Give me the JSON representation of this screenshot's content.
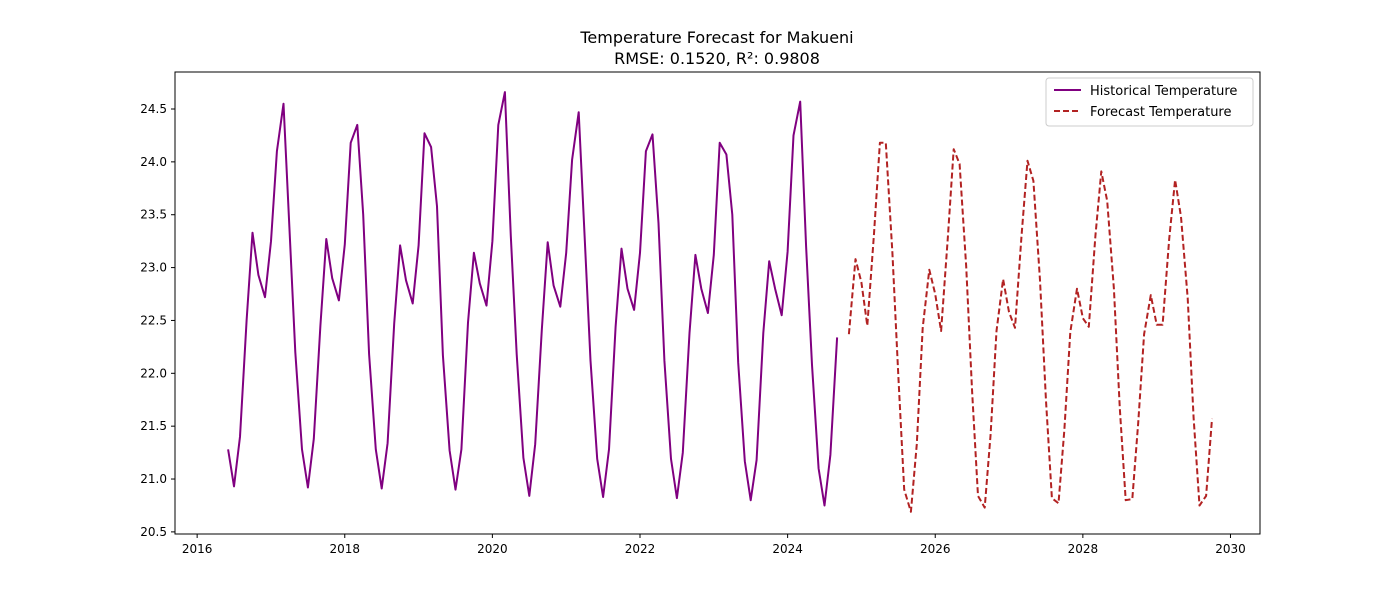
{
  "chart_data": {
    "type": "line",
    "title": "Temperature Forecast for Makueni",
    "subtitle": "RMSE: 0.1520, R²: 0.9808",
    "xlabel": "",
    "ylabel": "",
    "xlim": [
      2015.7,
      2030.4
    ],
    "ylim": [
      20.48,
      24.85
    ],
    "x_ticks": [
      2016,
      2018,
      2020,
      2022,
      2024,
      2026,
      2028,
      2030
    ],
    "y_ticks": [
      20.5,
      21.0,
      21.5,
      22.0,
      22.5,
      23.0,
      23.5,
      24.0,
      24.5
    ],
    "grid": false,
    "legend_position": "top-right",
    "series": [
      {
        "name": "Historical Temperature",
        "color": "#800080",
        "line_style": "solid",
        "x": [
          2016.42,
          2016.5,
          2016.58,
          2016.67,
          2016.75,
          2016.83,
          2016.92,
          2017.0,
          2017.08,
          2017.17,
          2017.25,
          2017.33,
          2017.42,
          2017.5,
          2017.58,
          2017.67,
          2017.75,
          2017.83,
          2017.92,
          2018.0,
          2018.08,
          2018.17,
          2018.25,
          2018.33,
          2018.42,
          2018.5,
          2018.58,
          2018.67,
          2018.75,
          2018.83,
          2018.92,
          2019.0,
          2019.08,
          2019.17,
          2019.25,
          2019.33,
          2019.42,
          2019.5,
          2019.58,
          2019.67,
          2019.75,
          2019.83,
          2019.92,
          2020.0,
          2020.08,
          2020.17,
          2020.25,
          2020.33,
          2020.42,
          2020.5,
          2020.58,
          2020.67,
          2020.75,
          2020.83,
          2020.92,
          2021.0,
          2021.08,
          2021.17,
          2021.25,
          2021.33,
          2021.42,
          2021.5,
          2021.58,
          2021.67,
          2021.75,
          2021.83,
          2021.92,
          2022.0,
          2022.08,
          2022.17,
          2022.25,
          2022.33,
          2022.42,
          2022.5,
          2022.58,
          2022.67,
          2022.75,
          2022.83,
          2022.92,
          2023.0,
          2023.08,
          2023.17,
          2023.25,
          2023.33,
          2023.42,
          2023.5,
          2023.58,
          2023.67,
          2023.75,
          2023.83,
          2023.92,
          2024.0,
          2024.08,
          2024.17,
          2024.25,
          2024.33,
          2024.42,
          2024.5,
          2024.58,
          2024.67
        ],
        "values": [
          21.28,
          20.93,
          21.4,
          22.5,
          23.33,
          22.93,
          22.72,
          23.25,
          24.1,
          24.55,
          23.38,
          22.2,
          21.28,
          20.92,
          21.38,
          22.45,
          23.27,
          22.9,
          22.69,
          23.22,
          24.18,
          24.35,
          23.5,
          22.18,
          21.28,
          20.91,
          21.34,
          22.47,
          23.21,
          22.88,
          22.66,
          23.21,
          24.27,
          24.14,
          23.58,
          22.17,
          21.27,
          20.9,
          21.28,
          22.48,
          23.14,
          22.85,
          22.64,
          23.25,
          24.35,
          24.66,
          23.3,
          22.18,
          21.2,
          20.84,
          21.33,
          22.41,
          23.24,
          22.83,
          22.63,
          23.14,
          24.02,
          24.47,
          23.3,
          22.12,
          21.19,
          20.83,
          21.28,
          22.44,
          23.18,
          22.8,
          22.6,
          23.14,
          24.1,
          24.26,
          23.42,
          22.12,
          21.19,
          20.82,
          21.25,
          22.38,
          23.12,
          22.8,
          22.57,
          23.12,
          24.18,
          24.07,
          23.5,
          22.1,
          21.17,
          20.8,
          21.18,
          22.38,
          23.06,
          22.8,
          22.55,
          23.15,
          24.25,
          24.57,
          23.2,
          22.08,
          21.1,
          20.75,
          21.23,
          22.34
        ]
      },
      {
        "name": "Forecast Temperature",
        "color": "#b22222",
        "line_style": "dashed",
        "x": [
          2024.83,
          2024.92,
          2025.0,
          2025.08,
          2025.17,
          2025.25,
          2025.33,
          2025.42,
          2025.5,
          2025.58,
          2025.67,
          2025.75,
          2025.83,
          2025.92,
          2026.0,
          2026.08,
          2026.17,
          2026.25,
          2026.33,
          2026.42,
          2026.5,
          2026.58,
          2026.67,
          2026.75,
          2026.83,
          2026.92,
          2027.0,
          2027.08,
          2027.17,
          2027.25,
          2027.33,
          2027.42,
          2027.5,
          2027.58,
          2027.67,
          2027.75,
          2027.83,
          2027.92,
          2028.0,
          2028.08,
          2028.17,
          2028.25,
          2028.33,
          2028.42,
          2028.5,
          2028.58,
          2028.67,
          2028.75,
          2028.83,
          2028.92,
          2029.0,
          2029.08,
          2029.17,
          2029.25,
          2029.33,
          2029.42,
          2029.5,
          2029.58,
          2029.67,
          2029.75
        ],
        "values": [
          22.37,
          23.08,
          22.86,
          22.45,
          23.32,
          24.18,
          24.18,
          23.14,
          21.98,
          20.9,
          20.69,
          21.33,
          22.43,
          22.98,
          22.75,
          22.4,
          23.28,
          24.12,
          23.98,
          23.01,
          21.83,
          20.84,
          20.73,
          21.42,
          22.4,
          22.89,
          22.58,
          22.43,
          23.31,
          24.01,
          23.82,
          22.88,
          21.74,
          20.82,
          20.77,
          21.47,
          22.39,
          22.8,
          22.52,
          22.44,
          23.3,
          23.91,
          23.63,
          22.8,
          21.67,
          20.8,
          20.81,
          21.53,
          22.37,
          22.74,
          22.46,
          22.46,
          23.27,
          23.83,
          23.48,
          22.71,
          21.58,
          20.75,
          20.84,
          21.57
        ]
      }
    ]
  }
}
